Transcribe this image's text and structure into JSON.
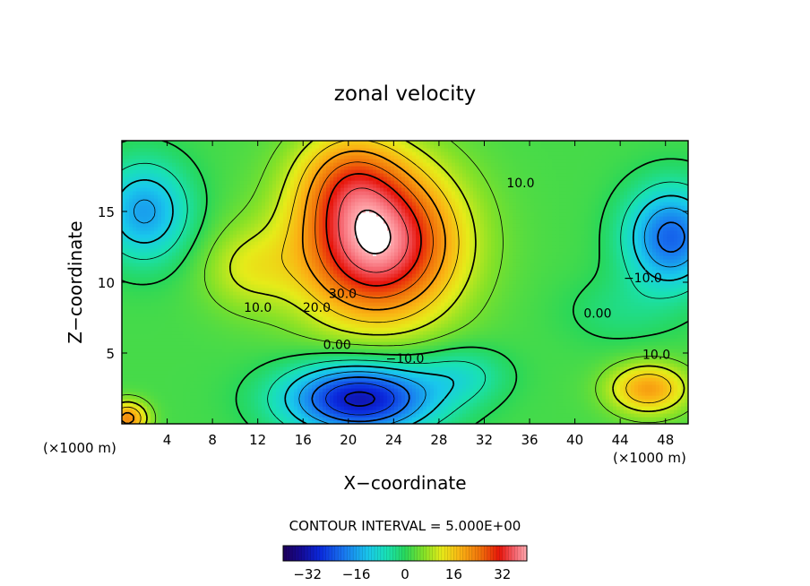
{
  "chart_data": {
    "type": "heatmap",
    "subtype": "filled-contour",
    "title": "zonal velocity",
    "xlabel": "X−coordinate",
    "ylabel": "Z−coordinate",
    "x_unit_label": "(×1000 m)",
    "z_unit_label": "(×1000 m)",
    "xlim": [
      0,
      50
    ],
    "ylim": [
      0,
      20
    ],
    "x_ticks": [
      4,
      8,
      12,
      16,
      20,
      24,
      28,
      32,
      36,
      40,
      44,
      48
    ],
    "y_ticks": [
      5,
      10,
      15
    ],
    "contour_interval_text": "CONTOUR INTERVAL = 5.000E+00",
    "contour_interval": 5.0,
    "contour_labels": [
      {
        "text": "30.0",
        "value": 30,
        "x": 19.5,
        "z": 8.9
      },
      {
        "text": "20.0",
        "value": 20,
        "x": 17.2,
        "z": 7.9
      },
      {
        "text": "10.0",
        "value": 10,
        "x": 12.0,
        "z": 7.9
      },
      {
        "text": "0.00",
        "value": 0,
        "x": 19.0,
        "z": 5.3
      },
      {
        "text": "−10.0",
        "value": -10,
        "x": 25.0,
        "z": 4.3
      },
      {
        "text": "10.0",
        "value": 10,
        "x": 35.2,
        "z": 16.7
      },
      {
        "text": "−10.0",
        "value": -10,
        "x": 46.0,
        "z": 10.0
      },
      {
        "text": "0.00",
        "value": 0,
        "x": 42.0,
        "z": 7.5
      },
      {
        "text": "10.0",
        "value": 10,
        "x": 47.2,
        "z": 4.6
      }
    ],
    "field_features": [
      {
        "name": "upper jet maximum",
        "x": 23,
        "z": 13,
        "value": 40
      },
      {
        "name": "lower westward minimum",
        "x": 21.5,
        "z": 1.5,
        "value": -32
      },
      {
        "name": "upper-left minimum",
        "x": 2,
        "z": 15,
        "value": -16
      },
      {
        "name": "upper-right minimum",
        "x": 48.5,
        "z": 13.2,
        "value": -20
      },
      {
        "name": "lower-right maximum",
        "x": 46.5,
        "z": 2.5,
        "value": 20
      },
      {
        "name": "lower-left maximum",
        "x": 0.5,
        "z": 0.5,
        "value": 22
      }
    ],
    "colorbar": {
      "min": -40,
      "max": 40,
      "tick_values": [
        -32,
        -16,
        0,
        16,
        32
      ],
      "tick_labels": [
        "−32",
        "−16",
        "0",
        "16",
        "32"
      ]
    }
  }
}
